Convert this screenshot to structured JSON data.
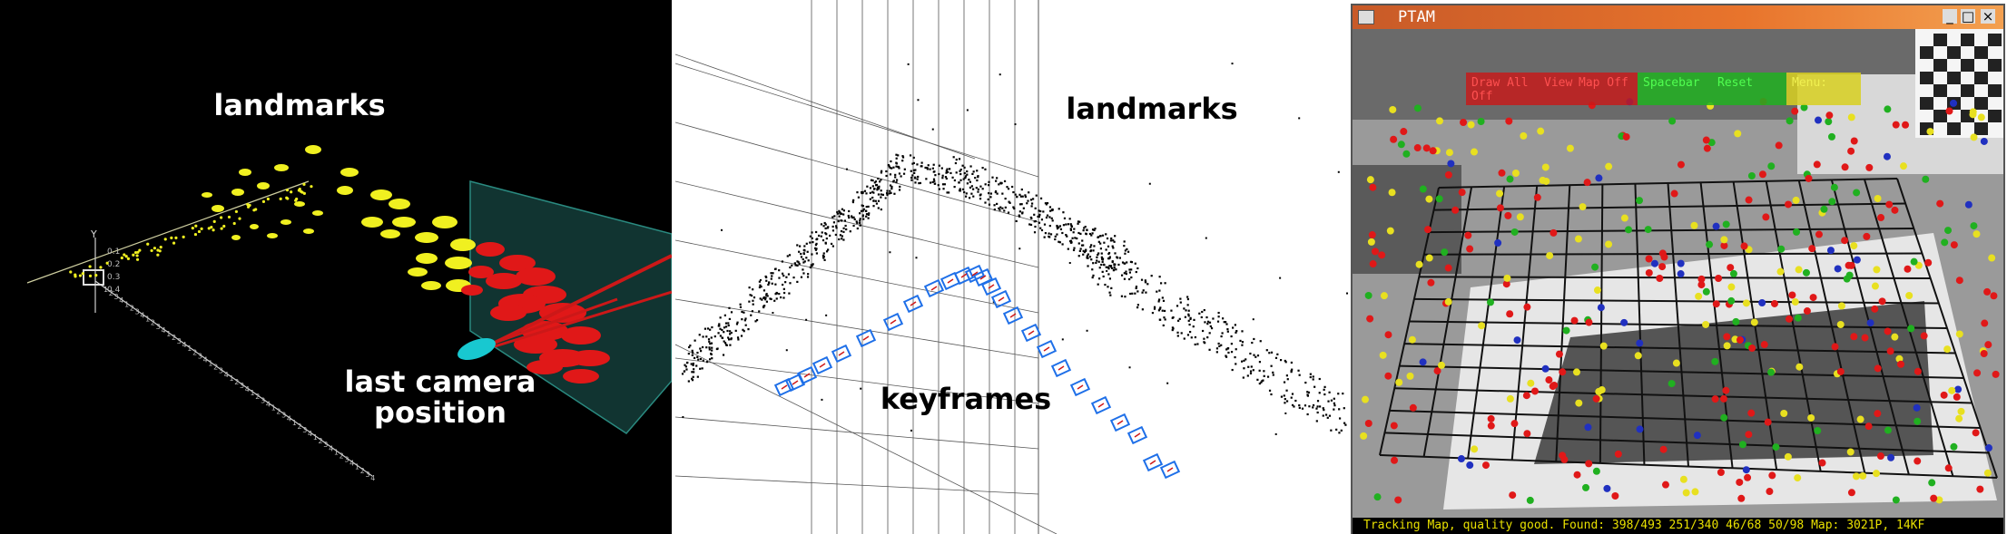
{
  "panel_left": {
    "landmarks_label": "landmarks",
    "camera_label_line1": "last camera",
    "camera_label_line2": "position",
    "axis_label_y": "Y",
    "axis_tick_labels": [
      "0.1",
      "0.2",
      "0.3",
      "0.4"
    ],
    "colors": {
      "background": "#000000",
      "landmark": "#f0f020",
      "near_landmark": "#e01818",
      "camera": "#18c8d0",
      "frustum": "#1f5f5a"
    }
  },
  "panel_middle": {
    "landmarks_label": "landmarks",
    "keyframes_label": "keyframes",
    "colors": {
      "background": "#ffffff",
      "points": "#000000",
      "keyframe": "#1e6fe8",
      "grid": "#555555"
    }
  },
  "panel_right": {
    "window_title": "PTAM",
    "window_controls": [
      "_",
      "□",
      "×"
    ],
    "menu": {
      "draw_all_off": "Draw All Off",
      "view": "View",
      "map_off": "Map Off",
      "spacebar": "Spacebar",
      "reset": "Reset",
      "menu": "Menu:"
    },
    "status_text": "Tracking Map, quality good. Found: 398/493 251/340 46/68 50/98 Map: 3021P, 14KF",
    "colors": {
      "title_bar": "#e8742c",
      "menu_red": "#c81818",
      "menu_green": "#20b020",
      "menu_yellow": "#d8d020",
      "status": "#e8e000"
    }
  }
}
